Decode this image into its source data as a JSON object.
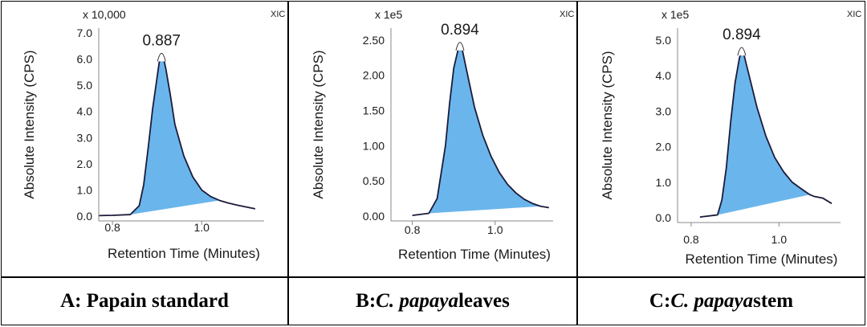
{
  "panels": [
    {
      "caption": {
        "prefix": "A: Papain standard",
        "italic": "",
        "suffix": ""
      },
      "multiplier": "x 10,000",
      "tag": "XIC",
      "peak_label": "0.887",
      "xlabel": "Retention Time (Minutes)",
      "ylabel": "Absolute Intensity (CPS)",
      "x_ticks": [
        "0.8",
        "1.0"
      ],
      "y_ticks": [
        "0.0",
        "1.0",
        "2.0",
        "3.0",
        "4.0",
        "5.0",
        "6.0",
        "7.0"
      ]
    },
    {
      "caption": {
        "prefix": "B: ",
        "italic": "C. papaya",
        "suffix": " leaves"
      },
      "multiplier": "x 1e5",
      "tag": "XIC",
      "peak_label": "0.894",
      "xlabel": "Retention Time (Minutes)",
      "ylabel": "Absolute Intensity (CPS)",
      "x_ticks": [
        "0.8",
        "1.0"
      ],
      "y_ticks": [
        "0.00",
        "0.50",
        "1.00",
        "1.50",
        "2.00",
        "2.50"
      ]
    },
    {
      "caption": {
        "prefix": "C: ",
        "italic": "C. papaya",
        "suffix": " stem"
      },
      "multiplier": "x 1e5",
      "tag": "XIC",
      "peak_label": "0.894",
      "xlabel": "Retention Time (Minutes)",
      "ylabel": "Absolute Intensity (CPS)",
      "x_ticks": [
        "0.8",
        "1.0"
      ],
      "y_ticks": [
        "0.0",
        "1.0",
        "2.0",
        "3.0",
        "4.0",
        "5.0"
      ]
    }
  ],
  "chart_data": [
    {
      "type": "area",
      "title": "",
      "xlabel": "Retention Time (Minutes)",
      "ylabel": "Absolute Intensity (CPS)",
      "y_multiplier": 10000,
      "xlim": [
        0.78,
        1.14
      ],
      "ylim": [
        0,
        7.0
      ],
      "peak": {
        "x": 0.887,
        "label": "0.887"
      },
      "series": [
        {
          "values": [
            [
              0.77,
              0.02
            ],
            [
              0.8,
              0.03
            ],
            [
              0.84,
              0.06
            ],
            [
              0.86,
              0.4
            ],
            [
              0.87,
              1.2
            ],
            [
              0.88,
              2.6
            ],
            [
              0.89,
              4.1
            ],
            [
              0.9,
              5.3
            ],
            [
              0.905,
              5.9
            ],
            [
              0.91,
              6.1
            ],
            [
              0.915,
              6.0
            ],
            [
              0.92,
              5.6
            ],
            [
              0.93,
              4.6
            ],
            [
              0.94,
              3.5
            ],
            [
              0.96,
              2.3
            ],
            [
              0.98,
              1.5
            ],
            [
              1.0,
              1.0
            ],
            [
              1.02,
              0.75
            ],
            [
              1.04,
              0.6
            ],
            [
              1.06,
              0.5
            ],
            [
              1.08,
              0.42
            ],
            [
              1.1,
              0.35
            ],
            [
              1.12,
              0.28
            ]
          ]
        }
      ],
      "fill_range": [
        0.84,
        1.04
      ],
      "colors": {
        "fill": "#5aaeea",
        "line": "#1b1b3a"
      }
    },
    {
      "type": "area",
      "title": "",
      "xlabel": "Retention Time (Minutes)",
      "ylabel": "Absolute Intensity (CPS)",
      "y_multiplier": 100000,
      "xlim": [
        0.76,
        1.14
      ],
      "ylim": [
        0,
        2.6
      ],
      "peak": {
        "x": 0.894,
        "label": "0.894"
      },
      "series": [
        {
          "values": [
            [
              0.8,
              0.01
            ],
            [
              0.84,
              0.04
            ],
            [
              0.86,
              0.25
            ],
            [
              0.88,
              1.0
            ],
            [
              0.89,
              1.6
            ],
            [
              0.9,
              2.1
            ],
            [
              0.91,
              2.35
            ],
            [
              0.915,
              2.42
            ],
            [
              0.92,
              2.38
            ],
            [
              0.93,
              2.1
            ],
            [
              0.95,
              1.55
            ],
            [
              0.97,
              1.15
            ],
            [
              0.99,
              0.85
            ],
            [
              1.01,
              0.62
            ],
            [
              1.03,
              0.45
            ],
            [
              1.05,
              0.33
            ],
            [
              1.07,
              0.24
            ],
            [
              1.09,
              0.18
            ],
            [
              1.11,
              0.14
            ],
            [
              1.13,
              0.12
            ]
          ]
        }
      ],
      "fill_range": [
        0.84,
        1.11
      ],
      "colors": {
        "fill": "#5aaeea",
        "line": "#1b1b3a"
      }
    },
    {
      "type": "area",
      "title": "",
      "xlabel": "Retention Time (Minutes)",
      "ylabel": "Absolute Intensity (CPS)",
      "y_multiplier": 100000,
      "xlim": [
        0.78,
        1.14
      ],
      "ylim": [
        0,
        5.2
      ],
      "peak": {
        "x": 0.894,
        "label": "0.894"
      },
      "series": [
        {
          "values": [
            [
              0.82,
              0.02
            ],
            [
              0.86,
              0.08
            ],
            [
              0.87,
              0.5
            ],
            [
              0.88,
              1.4
            ],
            [
              0.89,
              2.7
            ],
            [
              0.9,
              3.8
            ],
            [
              0.91,
              4.5
            ],
            [
              0.915,
              4.7
            ],
            [
              0.92,
              4.6
            ],
            [
              0.93,
              4.1
            ],
            [
              0.95,
              3.1
            ],
            [
              0.97,
              2.3
            ],
            [
              0.99,
              1.7
            ],
            [
              1.01,
              1.3
            ],
            [
              1.03,
              1.0
            ],
            [
              1.05,
              0.82
            ],
            [
              1.07,
              0.65
            ],
            [
              1.08,
              0.6
            ],
            [
              1.1,
              0.55
            ],
            [
              1.12,
              0.4
            ]
          ]
        }
      ],
      "fill_range": [
        0.86,
        1.07
      ],
      "colors": {
        "fill": "#5aaeea",
        "line": "#1b1b3a"
      }
    }
  ]
}
